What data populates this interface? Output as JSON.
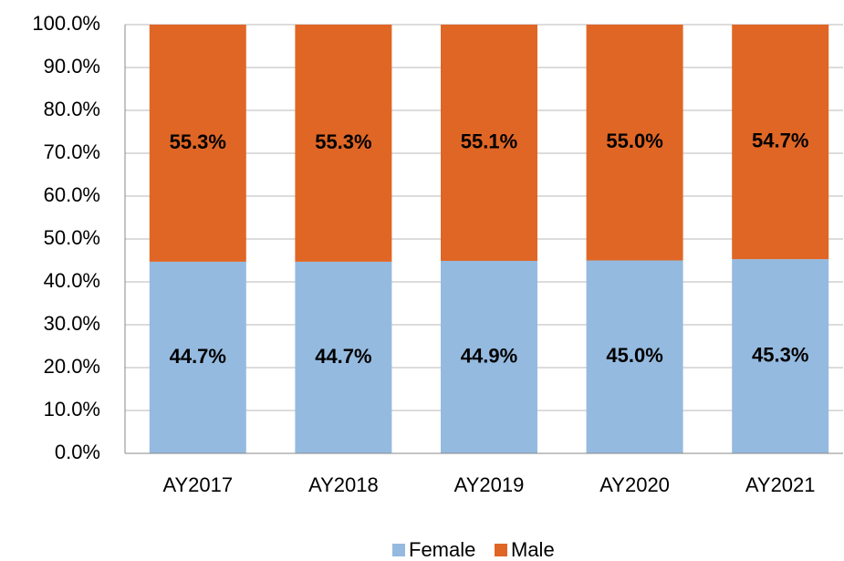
{
  "chart_data": {
    "type": "stacked_bar",
    "categories": [
      "AY2017",
      "AY2018",
      "AY2019",
      "AY2020",
      "AY2021"
    ],
    "series": [
      {
        "name": "Female",
        "color": "#95badf",
        "values": [
          44.7,
          44.7,
          44.9,
          45.0,
          45.3
        ],
        "value_labels": [
          "44.7%",
          "44.7%",
          "44.9%",
          "45.0%",
          "45.3%"
        ]
      },
      {
        "name": "Male",
        "color": "#e06626",
        "values": [
          55.3,
          55.3,
          55.1,
          55.0,
          54.7
        ],
        "value_labels": [
          "55.3%",
          "55.3%",
          "55.1%",
          "55.0%",
          "54.7%"
        ]
      }
    ],
    "ylim": [
      0,
      100
    ],
    "yticks": [
      {
        "value": 0,
        "label": "0.0%"
      },
      {
        "value": 10,
        "label": "10.0%"
      },
      {
        "value": 20,
        "label": "20.0%"
      },
      {
        "value": 30,
        "label": "30.0%"
      },
      {
        "value": 40,
        "label": "40.0%"
      },
      {
        "value": 50,
        "label": "50.0%"
      },
      {
        "value": 60,
        "label": "60.0%"
      },
      {
        "value": 70,
        "label": "70.0%"
      },
      {
        "value": 80,
        "label": "80.0%"
      },
      {
        "value": 90,
        "label": "90.0%"
      },
      {
        "value": 100,
        "label": "100.0%"
      }
    ],
    "grid": true,
    "legend": "bottom"
  }
}
